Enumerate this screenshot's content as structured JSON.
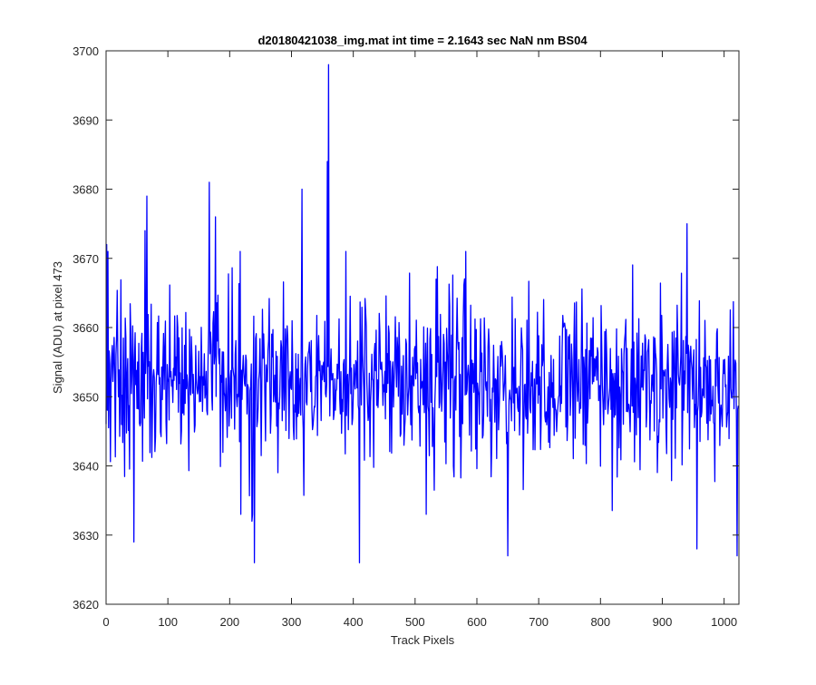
{
  "chart_data": {
    "type": "line",
    "title": "d20180421038_img.mat int time = 2.1643 sec  NaN nm BS04",
    "xlabel": "Track Pixels",
    "ylabel": "Signal (ADU) at pixel 473",
    "xlim": [
      0,
      1024
    ],
    "ylim": [
      3620,
      3700
    ],
    "xticks": [
      0,
      100,
      200,
      300,
      400,
      500,
      600,
      700,
      800,
      900,
      1000
    ],
    "yticks": [
      3620,
      3630,
      3640,
      3650,
      3660,
      3670,
      3680,
      3690,
      3700
    ],
    "grid": false,
    "line_color": "#0000ff",
    "series": [
      {
        "baseline_mean": 3652,
        "noise_std": 6.2,
        "n_points": 1024,
        "notable_points": [
          {
            "x": 1,
            "y": 3672
          },
          {
            "x": 3,
            "y": 3671
          },
          {
            "x": 45,
            "y": 3629
          },
          {
            "x": 63,
            "y": 3674
          },
          {
            "x": 66,
            "y": 3679
          },
          {
            "x": 167,
            "y": 3681
          },
          {
            "x": 177,
            "y": 3676
          },
          {
            "x": 236,
            "y": 3632
          },
          {
            "x": 240,
            "y": 3626
          },
          {
            "x": 317,
            "y": 3680
          },
          {
            "x": 358,
            "y": 3684
          },
          {
            "x": 360,
            "y": 3698
          },
          {
            "x": 410,
            "y": 3626
          },
          {
            "x": 650,
            "y": 3627
          },
          {
            "x": 940,
            "y": 3675
          },
          {
            "x": 956,
            "y": 3628
          },
          {
            "x": 1021,
            "y": 3627
          }
        ]
      }
    ]
  }
}
